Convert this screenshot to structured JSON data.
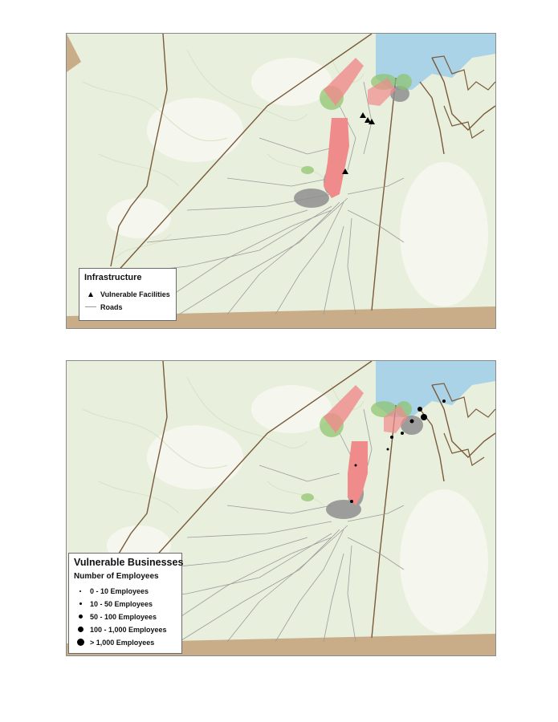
{
  "colors": {
    "land_forest": "#e8eedb",
    "land_open": "#f7f8f2",
    "water": "#aad3e8",
    "border_soil": "#c9ad88",
    "boundary": "#7a5a3a",
    "roads": "#9c9c9c",
    "urban": "#8f8f8f",
    "vulnerable_area": "#f08b8b",
    "vegetation_change": "#8cc46b",
    "symbol": "#000000"
  },
  "maps": [
    {
      "legend": {
        "title": "Infrastructure",
        "items": [
          {
            "label": "Vulnerable Facilities",
            "icon": "triangle-icon"
          },
          {
            "label": "Roads",
            "icon": "road-line-icon"
          }
        ]
      }
    },
    {
      "legend": {
        "title": "Vulnerable Businesses",
        "subtitle": "Number of Employees",
        "items": [
          {
            "label": "0 - 10 Employees",
            "icon": "dot-icon",
            "size_class": 1
          },
          {
            "label": "10 - 50 Employees",
            "icon": "dot-icon",
            "size_class": 2
          },
          {
            "label": "50 - 100 Employees",
            "icon": "dot-icon",
            "size_class": 3
          },
          {
            "label": "100 - 1,000 Employees",
            "icon": "dot-icon",
            "size_class": 4
          },
          {
            "label": "> 1,000 Employees",
            "icon": "dot-icon",
            "size_class": 5
          }
        ]
      }
    }
  ]
}
